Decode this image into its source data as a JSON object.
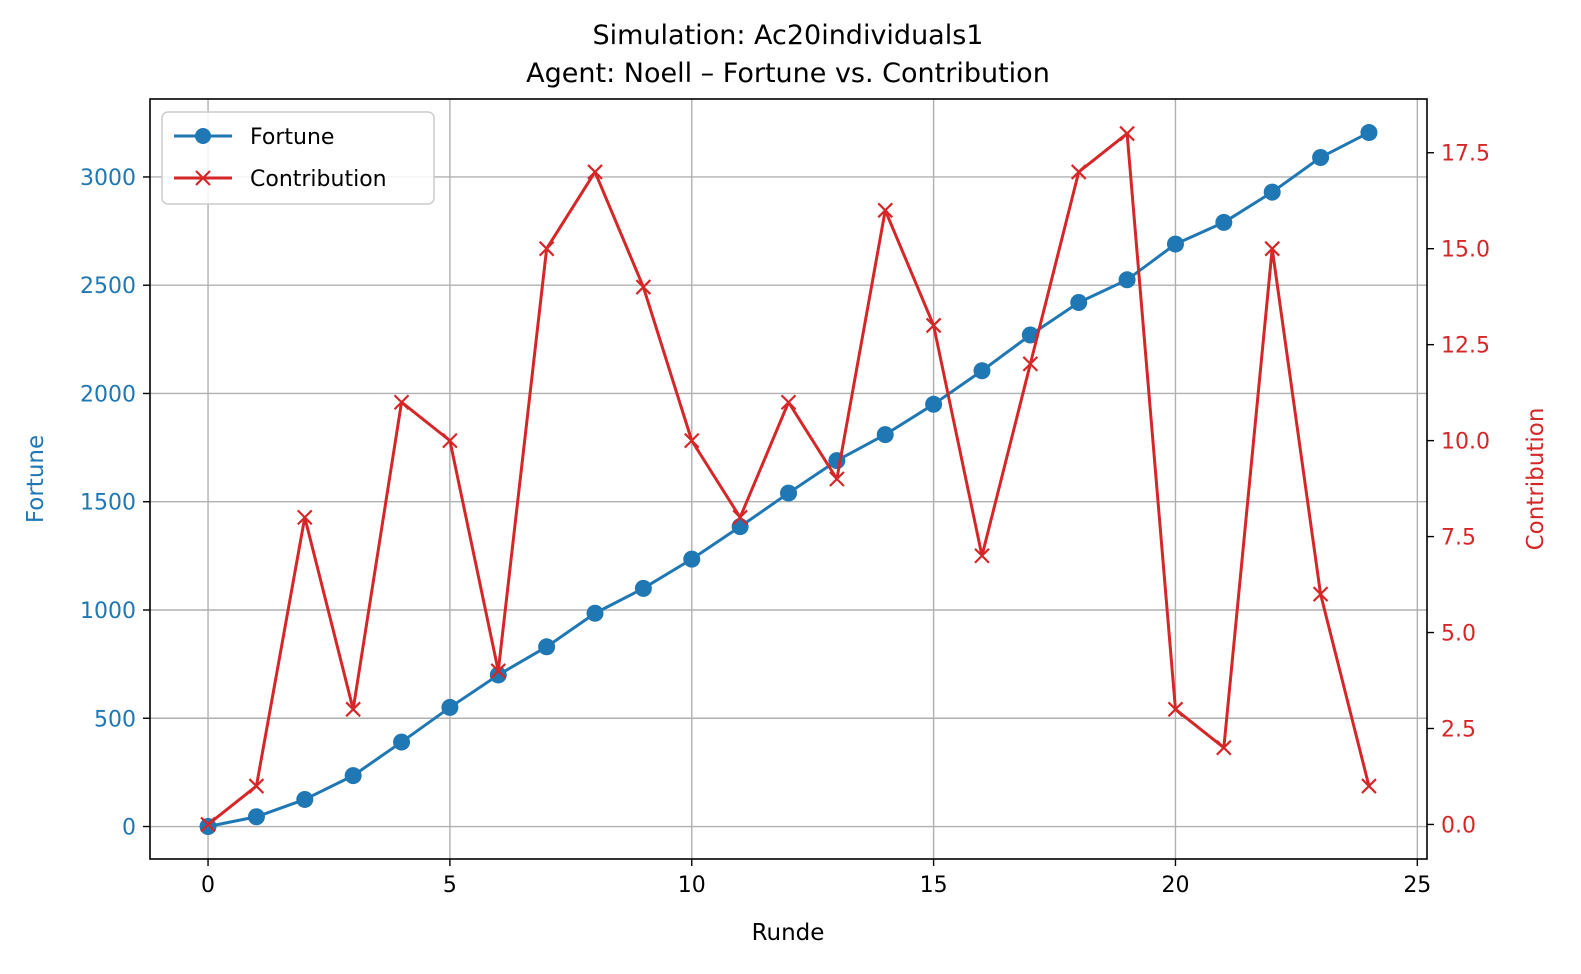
{
  "chart_data": {
    "type": "line",
    "title": [
      "Simulation: Ac20individuals1",
      "Agent: Noell – Fortune vs. Contribution"
    ],
    "xlabel": "Runde",
    "ylabel_left": "Fortune",
    "ylabel_right": "Contribution",
    "xlim": [
      -1.2,
      25.2
    ],
    "ylim_left": [
      -150,
      3360
    ],
    "ylim_right": [
      -0.9,
      18.9
    ],
    "x_ticks": [
      0,
      5,
      10,
      15,
      20,
      25
    ],
    "y_ticks_left": [
      0,
      500,
      1000,
      1500,
      2000,
      2500,
      3000
    ],
    "y_ticks_right": [
      "0.0",
      "2.5",
      "5.0",
      "7.5",
      "10.0",
      "12.5",
      "15.0",
      "17.5"
    ],
    "grid": true,
    "legend_position": "upper-left",
    "colors": {
      "fortune": "#1f77b4",
      "contribution": "#d62728"
    },
    "x": [
      0,
      1,
      2,
      3,
      4,
      5,
      6,
      7,
      8,
      9,
      10,
      11,
      12,
      13,
      14,
      15,
      16,
      17,
      18,
      19,
      20,
      21,
      22,
      23,
      24
    ],
    "series": [
      {
        "name": "Fortune",
        "axis": "left",
        "marker": "circle",
        "values": [
          0,
          45,
          125,
          235,
          390,
          550,
          700,
          830,
          985,
          1100,
          1235,
          1385,
          1540,
          1690,
          1810,
          1950,
          2105,
          2270,
          2420,
          2525,
          2690,
          2790,
          2930,
          3090,
          3205
        ]
      },
      {
        "name": "Contribution",
        "axis": "right",
        "marker": "x",
        "values": [
          0,
          1,
          8,
          3,
          11,
          10,
          4,
          15,
          17,
          14,
          10,
          8,
          11,
          9,
          16,
          13,
          7,
          12,
          17,
          18,
          3,
          2,
          15,
          6,
          1
        ]
      }
    ]
  }
}
